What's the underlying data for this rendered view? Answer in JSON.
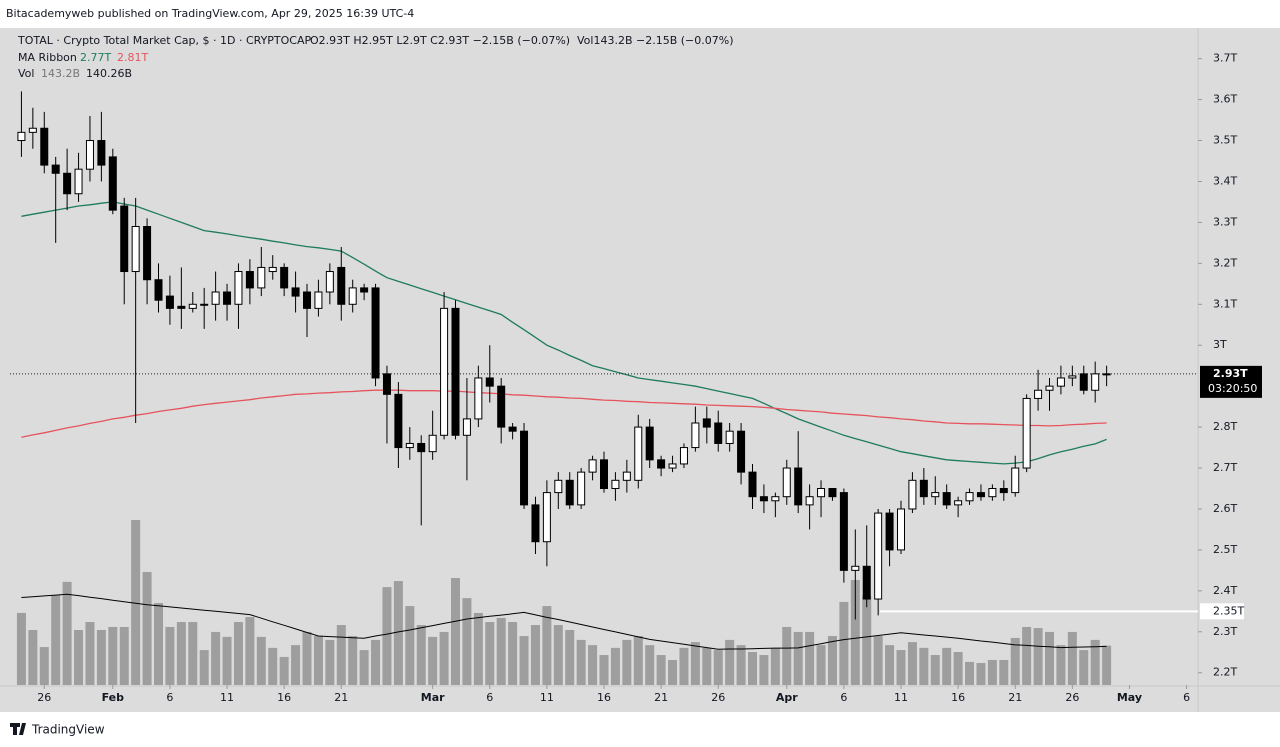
{
  "header": {
    "publisher": "Bitacademyweb published on TradingView.com, Apr 29, 2025 16:39 UTC-4",
    "brand": "TradingView"
  },
  "legend": {
    "symbol": "TOTAL · Crypto Total Market Cap, $ · 1D · CRYPTOCAP",
    "ohlc": "O2.93T H2.95T L2.9T C2.93T −2.15B (−0.07%)",
    "vol_line": "Vol143.2B −2.15B (−0.07%)",
    "ma_name": "MA Ribbon",
    "ma_fast": "2.77T",
    "ma_slow": "2.81T",
    "vol_name": "Vol",
    "vol_value": "143.2B",
    "vol_ma": "140.26B"
  },
  "chart_data": {
    "type": "candlestick",
    "x": [
      "2025-01-24",
      "2025-01-25",
      "2025-01-26",
      "2025-01-27",
      "2025-01-28",
      "2025-01-29",
      "2025-01-30",
      "2025-01-31",
      "2025-02-01",
      "2025-02-02",
      "2025-02-03",
      "2025-02-04",
      "2025-02-05",
      "2025-02-06",
      "2025-02-07",
      "2025-02-08",
      "2025-02-09",
      "2025-02-10",
      "2025-02-11",
      "2025-02-12",
      "2025-02-13",
      "2025-02-14",
      "2025-02-15",
      "2025-02-16",
      "2025-02-17",
      "2025-02-18",
      "2025-02-19",
      "2025-02-20",
      "2025-02-21",
      "2025-02-22",
      "2025-02-23",
      "2025-02-24",
      "2025-02-25",
      "2025-02-26",
      "2025-02-27",
      "2025-02-28",
      "2025-03-01",
      "2025-03-02",
      "2025-03-03",
      "2025-03-04",
      "2025-03-05",
      "2025-03-06",
      "2025-03-07",
      "2025-03-08",
      "2025-03-09",
      "2025-03-10",
      "2025-03-11",
      "2025-03-12",
      "2025-03-13",
      "2025-03-14",
      "2025-03-15",
      "2025-03-16",
      "2025-03-17",
      "2025-03-18",
      "2025-03-19",
      "2025-03-20",
      "2025-03-21",
      "2025-03-22",
      "2025-03-23",
      "2025-03-24",
      "2025-03-25",
      "2025-03-26",
      "2025-03-27",
      "2025-03-28",
      "2025-03-29",
      "2025-03-30",
      "2025-03-31",
      "2025-04-01",
      "2025-04-02",
      "2025-04-03",
      "2025-04-04",
      "2025-04-05",
      "2025-04-06",
      "2025-04-07",
      "2025-04-08",
      "2025-04-09",
      "2025-04-10",
      "2025-04-11",
      "2025-04-12",
      "2025-04-13",
      "2025-04-14",
      "2025-04-15",
      "2025-04-16",
      "2025-04-17",
      "2025-04-18",
      "2025-04-19",
      "2025-04-20",
      "2025-04-21",
      "2025-04-22",
      "2025-04-23",
      "2025-04-24",
      "2025-04-25",
      "2025-04-26",
      "2025-04-27",
      "2025-04-28",
      "2025-04-29"
    ],
    "open": [
      3.5,
      3.52,
      3.53,
      3.44,
      3.42,
      3.37,
      3.43,
      3.5,
      3.46,
      3.34,
      3.18,
      3.29,
      3.16,
      3.12,
      3.095,
      3.09,
      3.1,
      3.1,
      3.13,
      3.1,
      3.18,
      3.14,
      3.18,
      3.19,
      3.14,
      3.13,
      3.09,
      3.13,
      3.19,
      3.1,
      3.14,
      3.14,
      2.93,
      2.88,
      2.75,
      2.76,
      2.74,
      2.78,
      3.09,
      2.78,
      2.82,
      2.92,
      2.9,
      2.8,
      2.79,
      2.61,
      2.52,
      2.64,
      2.67,
      2.61,
      2.69,
      2.72,
      2.65,
      2.67,
      2.67,
      2.8,
      2.72,
      2.7,
      2.71,
      2.75,
      2.82,
      2.81,
      2.76,
      2.79,
      2.69,
      2.63,
      2.62,
      2.63,
      2.7,
      2.61,
      2.63,
      2.65,
      2.64,
      2.45,
      2.46,
      2.38,
      2.59,
      2.5,
      2.6,
      2.67,
      2.63,
      2.64,
      2.61,
      2.62,
      2.64,
      2.63,
      2.65,
      2.64,
      2.7,
      2.87,
      2.89,
      2.9,
      2.92,
      2.93,
      2.89,
      2.93
    ],
    "high": [
      3.62,
      3.58,
      3.57,
      3.46,
      3.48,
      3.47,
      3.56,
      3.57,
      3.48,
      3.36,
      3.36,
      3.31,
      3.2,
      3.17,
      3.19,
      3.13,
      3.14,
      3.18,
      3.15,
      3.2,
      3.21,
      3.24,
      3.22,
      3.2,
      3.18,
      3.15,
      3.16,
      3.2,
      3.24,
      3.16,
      3.15,
      3.15,
      2.95,
      2.91,
      2.8,
      2.78,
      2.84,
      3.13,
      3.11,
      2.92,
      2.95,
      3.0,
      2.92,
      2.81,
      2.81,
      2.63,
      2.67,
      2.69,
      2.69,
      2.7,
      2.73,
      2.74,
      2.69,
      2.72,
      2.83,
      2.82,
      2.73,
      2.73,
      2.76,
      2.85,
      2.85,
      2.84,
      2.81,
      2.81,
      2.71,
      2.66,
      2.64,
      2.72,
      2.79,
      2.66,
      2.67,
      2.65,
      2.65,
      2.55,
      2.56,
      2.6,
      2.6,
      2.62,
      2.69,
      2.7,
      2.68,
      2.66,
      2.63,
      2.65,
      2.66,
      2.66,
      2.67,
      2.73,
      2.88,
      2.94,
      2.92,
      2.95,
      2.95,
      2.95,
      2.96,
      2.95
    ],
    "low": [
      3.46,
      3.48,
      3.42,
      3.25,
      3.33,
      3.35,
      3.4,
      3.4,
      3.32,
      3.1,
      2.81,
      3.1,
      3.08,
      3.05,
      3.04,
      3.08,
      3.04,
      3.06,
      3.06,
      3.04,
      3.1,
      3.12,
      3.16,
      3.12,
      3.08,
      3.02,
      3.07,
      3.1,
      3.06,
      3.08,
      3.11,
      2.9,
      2.76,
      2.7,
      2.72,
      2.56,
      2.72,
      2.77,
      2.77,
      2.67,
      2.8,
      2.86,
      2.76,
      2.77,
      2.6,
      2.49,
      2.46,
      2.6,
      2.6,
      2.6,
      2.67,
      2.64,
      2.62,
      2.64,
      2.65,
      2.7,
      2.68,
      2.69,
      2.7,
      2.74,
      2.76,
      2.74,
      2.74,
      2.66,
      2.6,
      2.59,
      2.58,
      2.61,
      2.59,
      2.55,
      2.58,
      2.62,
      2.42,
      2.33,
      2.36,
      2.34,
      2.46,
      2.49,
      2.59,
      2.61,
      2.61,
      2.6,
      2.58,
      2.61,
      2.62,
      2.62,
      2.62,
      2.63,
      2.69,
      2.84,
      2.84,
      2.88,
      2.9,
      2.88,
      2.86,
      2.9
    ],
    "close": [
      3.52,
      3.53,
      3.44,
      3.42,
      3.37,
      3.43,
      3.5,
      3.44,
      3.33,
      3.18,
      3.29,
      3.16,
      3.11,
      3.09,
      3.09,
      3.1,
      3.1,
      3.13,
      3.1,
      3.18,
      3.14,
      3.19,
      3.19,
      3.14,
      3.12,
      3.09,
      3.13,
      3.18,
      3.1,
      3.14,
      3.13,
      2.92,
      2.88,
      2.75,
      2.76,
      2.74,
      2.78,
      3.09,
      2.78,
      2.82,
      2.92,
      2.9,
      2.8,
      2.79,
      2.61,
      2.52,
      2.64,
      2.67,
      2.61,
      2.69,
      2.72,
      2.65,
      2.67,
      2.69,
      2.8,
      2.72,
      2.7,
      2.71,
      2.75,
      2.81,
      2.8,
      2.76,
      2.79,
      2.69,
      2.63,
      2.62,
      2.63,
      2.7,
      2.61,
      2.63,
      2.65,
      2.63,
      2.45,
      2.46,
      2.38,
      2.59,
      2.5,
      2.6,
      2.67,
      2.63,
      2.64,
      2.61,
      2.62,
      2.64,
      2.63,
      2.65,
      2.64,
      2.7,
      2.87,
      2.89,
      2.9,
      2.92,
      2.925,
      2.89,
      2.93,
      2.93
    ],
    "up_color": "#ffffff",
    "down_color": "#000000",
    "volume": {
      "color": "#9e9e9e",
      "values": [
        262,
        200,
        138,
        327,
        375,
        200,
        229,
        200,
        211,
        211,
        600,
        411,
        298,
        211,
        229,
        229,
        127,
        193,
        175,
        229,
        247,
        175,
        135,
        102,
        145,
        193,
        178,
        164,
        218,
        178,
        127,
        164,
        356,
        378,
        287,
        218,
        175,
        193,
        389,
        316,
        262,
        229,
        244,
        229,
        178,
        218,
        287,
        218,
        200,
        164,
        145,
        109,
        135,
        164,
        178,
        145,
        109,
        91,
        135,
        156,
        135,
        127,
        164,
        145,
        120,
        109,
        135,
        211,
        193,
        193,
        145,
        178,
        302,
        382,
        324,
        178,
        145,
        127,
        156,
        135,
        109,
        135,
        120,
        84,
        80,
        91,
        91,
        171,
        211,
        207,
        193,
        145,
        193,
        127,
        164,
        143.2
      ],
      "ma": {
        "color": "#000000",
        "values": [
          318,
          321,
          324,
          327,
          330,
          325,
          319,
          314,
          308,
          303,
          297,
          292,
          288,
          284,
          280,
          276,
          272,
          268,
          264,
          260,
          256,
          243,
          230,
          217,
          204,
          191,
          178,
          176,
          174,
          172,
          170,
          178,
          185,
          193,
          200,
          208,
          216,
          224,
          232,
          240,
          245,
          250,
          254,
          259,
          264,
          255,
          246,
          238,
          229,
          220,
          211,
          202,
          193,
          184,
          175,
          166,
          160,
          154,
          148,
          142,
          136,
          130,
          131,
          131,
          132,
          133,
          134,
          134,
          135,
          143,
          150,
          158,
          165,
          170,
          175,
          180,
          185,
          190,
          186,
          182,
          178,
          174,
          170,
          165,
          160,
          156,
          151,
          146,
          144,
          141,
          139,
          136,
          137,
          138,
          139,
          140.26
        ]
      }
    },
    "overlays": [
      {
        "color": "#1e7b5e",
        "values": [
          3.315,
          3.32,
          3.325,
          3.33,
          3.335,
          3.34,
          3.343,
          3.347,
          3.35,
          3.345,
          3.34,
          3.33,
          3.32,
          3.31,
          3.3,
          3.29,
          3.28,
          3.276,
          3.272,
          3.267,
          3.263,
          3.259,
          3.254,
          3.25,
          3.245,
          3.241,
          3.238,
          3.234,
          3.23,
          3.214,
          3.198,
          3.181,
          3.165,
          3.156,
          3.147,
          3.138,
          3.129,
          3.12,
          3.111,
          3.102,
          3.093,
          3.084,
          3.075,
          3.056,
          3.038,
          3.019,
          3.0,
          2.988,
          2.975,
          2.963,
          2.95,
          2.943,
          2.935,
          2.928,
          2.92,
          2.916,
          2.912,
          2.908,
          2.904,
          2.9,
          2.894,
          2.888,
          2.882,
          2.876,
          2.87,
          2.858,
          2.845,
          2.833,
          2.82,
          2.81,
          2.8,
          2.79,
          2.78,
          2.772,
          2.764,
          2.756,
          2.748,
          2.74,
          2.735,
          2.73,
          2.725,
          2.72,
          2.718,
          2.716,
          2.714,
          2.712,
          2.71,
          2.712,
          2.715,
          2.723,
          2.732,
          2.74,
          2.746,
          2.753,
          2.759,
          2.77
        ]
      },
      {
        "color": "#e5545c",
        "values": [
          2.775,
          2.781,
          2.786,
          2.792,
          2.798,
          2.803,
          2.809,
          2.814,
          2.82,
          2.824,
          2.829,
          2.833,
          2.838,
          2.842,
          2.846,
          2.851,
          2.855,
          2.858,
          2.861,
          2.864,
          2.867,
          2.871,
          2.874,
          2.877,
          2.88,
          2.881,
          2.883,
          2.884,
          2.886,
          2.887,
          2.889,
          2.89,
          2.89,
          2.89,
          2.889,
          2.889,
          2.889,
          2.888,
          2.888,
          2.886,
          2.884,
          2.883,
          2.881,
          2.879,
          2.878,
          2.876,
          2.874,
          2.873,
          2.871,
          2.87,
          2.868,
          2.866,
          2.865,
          2.863,
          2.862,
          2.86,
          2.859,
          2.858,
          2.857,
          2.856,
          2.854,
          2.853,
          2.852,
          2.851,
          2.85,
          2.848,
          2.846,
          2.843,
          2.841,
          2.839,
          2.837,
          2.834,
          2.832,
          2.83,
          2.828,
          2.825,
          2.823,
          2.82,
          2.818,
          2.815,
          2.813,
          2.81,
          2.809,
          2.808,
          2.808,
          2.807,
          2.806,
          2.805,
          2.804,
          2.804,
          2.803,
          2.804,
          2.806,
          2.807,
          2.809,
          2.81
        ]
      }
    ],
    "last_price": {
      "value": 2.93,
      "label": "2.93T",
      "countdown": "03:20:50"
    },
    "price_line": {
      "value": 2.35,
      "label": "2.35T",
      "color": "#ffffff"
    },
    "ylim": [
      2.17,
      3.77
    ],
    "yticks": [
      {
        "value": 3.7,
        "label": "3.7T"
      },
      {
        "value": 3.6,
        "label": "3.6T"
      },
      {
        "value": 3.5,
        "label": "3.5T"
      },
      {
        "value": 3.4,
        "label": "3.4T"
      },
      {
        "value": 3.3,
        "label": "3.3T"
      },
      {
        "value": 3.2,
        "label": "3.2T"
      },
      {
        "value": 3.1,
        "label": "3.1T"
      },
      {
        "value": 3,
        "label": "3T"
      },
      {
        "value": 2.8,
        "label": "2.8T"
      },
      {
        "value": 2.7,
        "label": "2.7T"
      },
      {
        "value": 2.6,
        "label": "2.6T"
      },
      {
        "value": 2.5,
        "label": "2.5T"
      },
      {
        "value": 2.4,
        "label": "2.4T"
      },
      {
        "value": 2.3,
        "label": "2.3T"
      },
      {
        "value": 2.2,
        "label": "2.2T"
      }
    ],
    "xlim": [
      "2025-01-23",
      "2025-05-07"
    ],
    "xticks": [
      {
        "value": "2025-01-26",
        "label": "26"
      },
      {
        "value": "2025-02-01",
        "label": "Feb"
      },
      {
        "value": "2025-02-06",
        "label": "6"
      },
      {
        "value": "2025-02-11",
        "label": "11"
      },
      {
        "value": "2025-02-16",
        "label": "16"
      },
      {
        "value": "2025-02-21",
        "label": "21"
      },
      {
        "value": "2025-03-01",
        "label": "Mar"
      },
      {
        "value": "2025-03-06",
        "label": "6"
      },
      {
        "value": "2025-03-11",
        "label": "11"
      },
      {
        "value": "2025-03-16",
        "label": "16"
      },
      {
        "value": "2025-03-21",
        "label": "21"
      },
      {
        "value": "2025-03-26",
        "label": "26"
      },
      {
        "value": "2025-04-01",
        "label": "Apr"
      },
      {
        "value": "2025-04-06",
        "label": "6"
      },
      {
        "value": "2025-04-11",
        "label": "11"
      },
      {
        "value": "2025-04-16",
        "label": "16"
      },
      {
        "value": "2025-04-21",
        "label": "21"
      },
      {
        "value": "2025-04-26",
        "label": "26"
      },
      {
        "value": "2025-05-01",
        "label": "May"
      },
      {
        "value": "2025-05-06",
        "label": "6"
      }
    ]
  }
}
